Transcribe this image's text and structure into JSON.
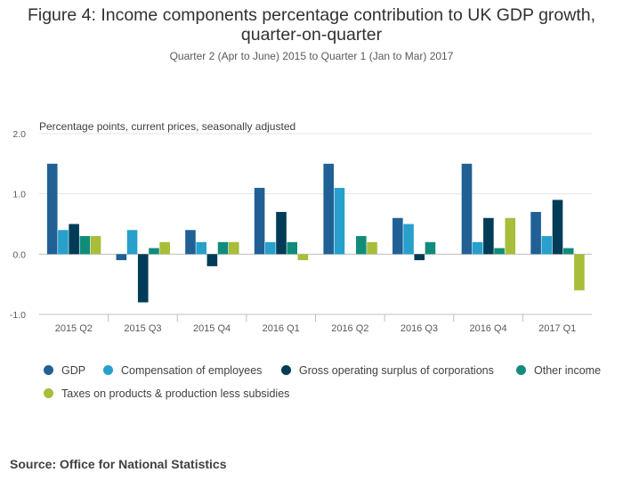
{
  "title_line1": "Figure 4: Income components percentage contribution to UK GDP growth,",
  "title_line2": "quarter-on-quarter",
  "subtitle": "Quarter 2 (Apr to June) 2015 to Quarter 1 (Jan to Mar) 2017",
  "source": "Source: Office for National Statistics",
  "chart_data": {
    "type": "bar",
    "ylabel": "Percentage points, current prices, seasonally adjusted",
    "ylim": [
      -1.0,
      2.0
    ],
    "yticks": [
      -1.0,
      0.0,
      1.0,
      2.0
    ],
    "ytick_labels": [
      "-1.0",
      "0.0",
      "1.0",
      "2.0"
    ],
    "grid": true,
    "legend_position": "bottom",
    "categories": [
      "2015 Q2",
      "2015 Q3",
      "2015 Q4",
      "2016 Q1",
      "2016 Q2",
      "2016 Q3",
      "2016 Q4",
      "2017 Q1"
    ],
    "series": [
      {
        "name": "GDP",
        "color": "#206095",
        "values": [
          1.5,
          -0.1,
          0.4,
          1.1,
          1.5,
          0.6,
          1.5,
          0.7
        ]
      },
      {
        "name": "Compensation of employees",
        "color": "#27a0cc",
        "values": [
          0.4,
          0.4,
          0.2,
          0.2,
          1.1,
          0.5,
          0.2,
          0.3
        ]
      },
      {
        "name": "Gross operating surplus of corporations",
        "color": "#003c57",
        "values": [
          0.5,
          -0.8,
          -0.2,
          0.7,
          0.0,
          -0.1,
          0.6,
          0.9
        ]
      },
      {
        "name": "Other income",
        "color": "#118c7b",
        "values": [
          0.3,
          0.1,
          0.2,
          0.2,
          0.3,
          0.2,
          0.1,
          0.1
        ]
      },
      {
        "name": "Taxes on products & production less subsidies",
        "color": "#a8bd3a",
        "values": [
          0.3,
          0.2,
          0.2,
          -0.1,
          0.2,
          0.0,
          0.6,
          -0.6
        ]
      }
    ]
  }
}
